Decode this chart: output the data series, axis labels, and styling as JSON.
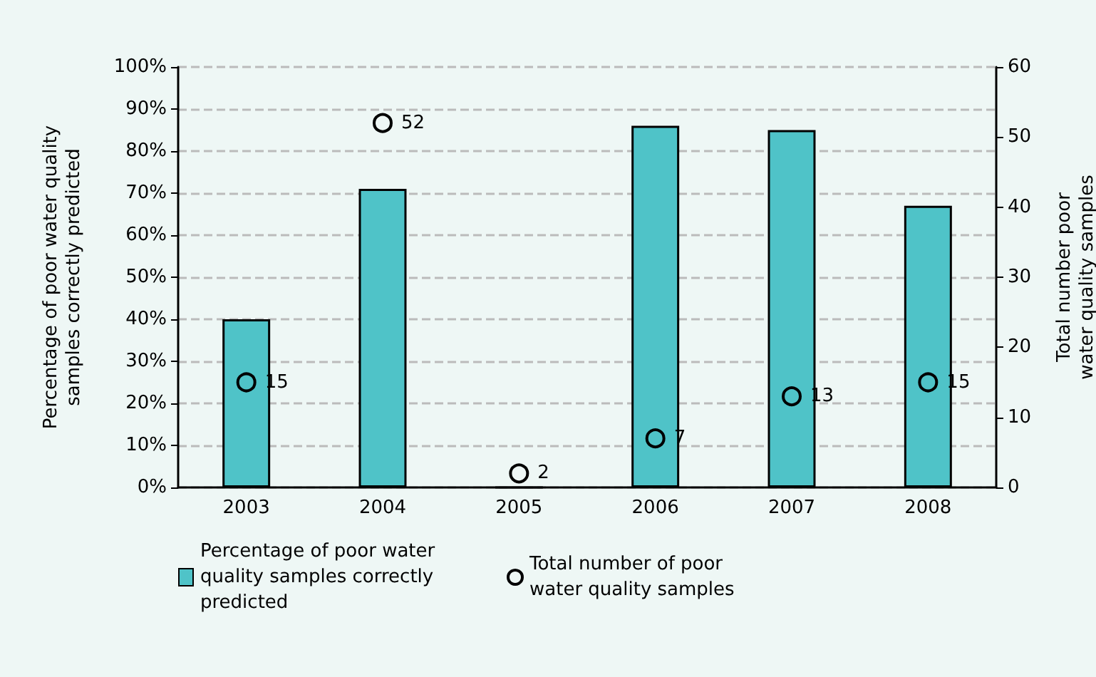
{
  "chart_data": {
    "type": "bar",
    "ylabel": "Percentage of poor water quality samples correctly predicted",
    "y2label": "Total number poor water quality samples",
    "categories": [
      "2003",
      "2004",
      "2005",
      "2006",
      "2007",
      "2008"
    ],
    "series": [
      {
        "name": "Percentage of poor water quality samples correctly predicted",
        "color": "#4fc3c8",
        "values": [
          40,
          71,
          0,
          86,
          85,
          67
        ]
      },
      {
        "name": "Total number of poor water quality samples",
        "type": "scatter",
        "axis": "y2",
        "color": "#000000",
        "marker": "circle",
        "values": [
          15,
          52,
          2,
          7,
          13,
          15
        ],
        "value_labels": [
          "15",
          "52",
          "2",
          "7",
          "13",
          "15"
        ]
      }
    ],
    "ylim": [
      0,
      100
    ],
    "yticks": [
      {
        "value": 0,
        "label": "0%"
      },
      {
        "value": 10,
        "label": "10%"
      },
      {
        "value": 20,
        "label": "20%"
      },
      {
        "value": 30,
        "label": "30%"
      },
      {
        "value": 40,
        "label": "40%"
      },
      {
        "value": 50,
        "label": "50%"
      },
      {
        "value": 60,
        "label": "60%"
      },
      {
        "value": 70,
        "label": "70%"
      },
      {
        "value": 80,
        "label": "80%"
      },
      {
        "value": 90,
        "label": "90%"
      },
      {
        "value": 100,
        "label": "100%"
      }
    ],
    "y2lim": [
      0,
      60
    ],
    "y2ticks": [
      0,
      10,
      20,
      30,
      40,
      50,
      60
    ],
    "grid": "y",
    "legend": "bottom"
  }
}
